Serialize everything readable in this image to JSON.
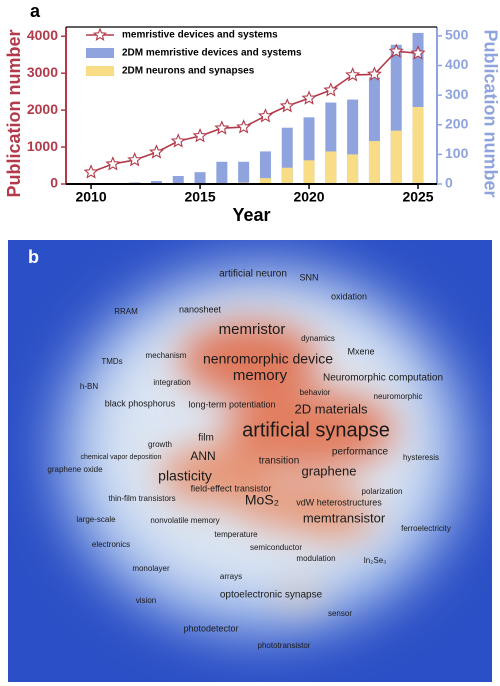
{
  "chart_data": [
    {
      "type": "bar-line",
      "panel": "a",
      "x": [
        2010,
        2011,
        2012,
        2013,
        2014,
        2015,
        2016,
        2017,
        2018,
        2019,
        2020,
        2021,
        2022,
        2023,
        2024,
        2025
      ],
      "xlim": [
        2008.85,
        2025.87
      ],
      "xticks": [
        2010,
        2015,
        2020,
        2025
      ],
      "xlabel": "Year",
      "ylabel": "Publication number",
      "ylim": [
        0,
        4250
      ],
      "yticks": [
        0,
        1000,
        2000,
        3000,
        4000
      ],
      "y2label": "Publication number",
      "y2lim": [
        0,
        530
      ],
      "y2ticks": [
        0,
        100,
        200,
        300,
        400,
        500
      ],
      "legend": "upper left",
      "series": [
        {
          "name": "memristive devices and systems",
          "color": "#b23a4a",
          "type": "line",
          "values": [
            320,
            540,
            650,
            860,
            1160,
            1300,
            1510,
            1540,
            1840,
            2110,
            2320,
            2540,
            2950,
            2970,
            3590,
            3540
          ]
        },
        {
          "name": "2DM memristive devices and systems",
          "color": "#8fa4de",
          "type": "bar",
          "axis": "y2",
          "values": [
            0,
            1,
            5,
            10,
            27,
            40,
            75,
            75,
            110,
            190,
            225,
            275,
            285,
            360,
            470,
            510
          ]
        },
        {
          "name": "2DM neurons and synapses",
          "color": "#f8dc86",
          "type": "bar",
          "axis": "y2",
          "values": [
            0,
            0,
            0,
            0,
            0,
            0,
            0,
            5,
            20,
            55,
            80,
            110,
            100,
            145,
            180,
            260
          ]
        }
      ]
    },
    {
      "type": "word-map",
      "panel": "b",
      "words": [
        "artificial neuron",
        "SNN",
        "oxidation",
        "RRAM",
        "nanosheet",
        "memristor",
        "dynamics",
        "Mxene",
        "TMDs",
        "mechanism",
        "nenromorphic device",
        "memory",
        "Neuromorphic computation",
        "integration",
        "behavior",
        "neuromorphic",
        "h-BN",
        "black phosphorus",
        "long-term potentiation",
        "2D materials",
        "artificial synapse",
        "film",
        "growth",
        "performance",
        "hysteresis",
        "chemical vapor deposition",
        "ANN",
        "transition",
        "graphene oxide",
        "graphene",
        "plasticity",
        "field-effect transistor",
        "polarization",
        "MoS₂",
        "vdW heterostructures",
        "thin-film transistors",
        "memtransistor",
        "large-scale",
        "nonvolatile memory",
        "ferroelectricity",
        "temperature",
        "electronics",
        "semiconductor",
        "modulation",
        "In₂Se₃",
        "monolayer",
        "arrays",
        "optoelectronic synapse",
        "vision",
        "sensor",
        "photodetector",
        "phototransistor"
      ]
    }
  ]
}
